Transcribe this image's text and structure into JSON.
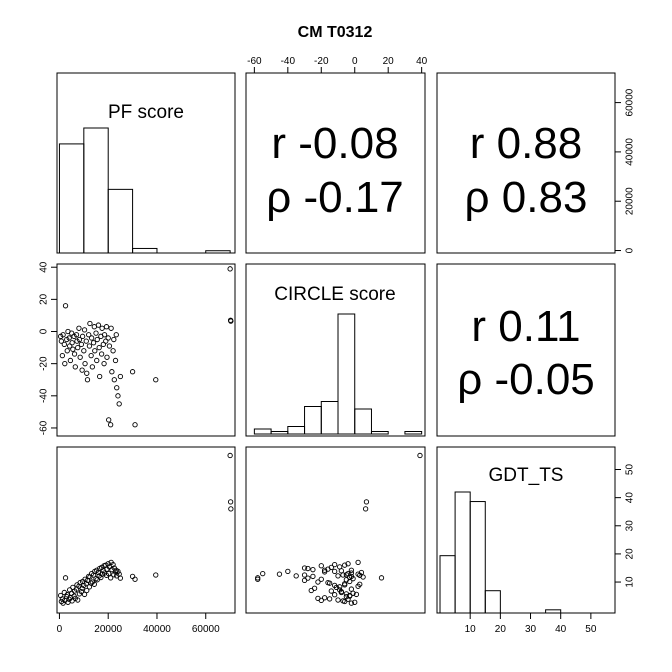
{
  "title": "CM T0312",
  "chart_data": {
    "type": "scatter-matrix",
    "variables": [
      "PF score",
      "CIRCLE score",
      "GDT_TS"
    ],
    "axis_ranges": {
      "pf": [
        -1000,
        72000
      ],
      "circle": [
        -65,
        42
      ],
      "gdt": [
        -1,
        58
      ]
    },
    "ticks": {
      "top": [
        "-60",
        "-40",
        "-20",
        "0",
        "20",
        "40"
      ],
      "bottom": [
        "0",
        "20000",
        "40000",
        "60000"
      ],
      "right_top": [
        "0",
        "20000",
        "40000",
        "60000"
      ],
      "left_mid": [
        "40",
        "20",
        "0",
        "-20",
        "-40",
        "-60"
      ],
      "right_bottom": [
        "10",
        "20",
        "30",
        "40",
        "50"
      ],
      "bottom_right": [
        "10",
        "20",
        "30",
        "40",
        "50"
      ]
    },
    "correlations": [
      {
        "r": "r -0.08",
        "rho": "ρ -0.17"
      },
      {
        "r": "r 0.88",
        "rho": "ρ 0.83"
      },
      {
        "r": "r 0.11",
        "rho": "ρ -0.05"
      }
    ],
    "histograms": {
      "pf": {
        "label": "PF score",
        "bins": [
          0,
          10000,
          20000,
          30000,
          40000,
          50000,
          60000,
          70000
        ],
        "counts": [
          48,
          55,
          28,
          2,
          0,
          0,
          1
        ]
      },
      "circle": {
        "label": "CIRCLE score",
        "bins": [
          -60,
          -50,
          -40,
          -30,
          -20,
          -10,
          0,
          10,
          20,
          30,
          40
        ],
        "counts": [
          2,
          1,
          3,
          11,
          13,
          48,
          10,
          1,
          0,
          1
        ]
      },
      "gdt": {
        "label": "GDT_TS",
        "bins": [
          0,
          5,
          10,
          15,
          20,
          25,
          30,
          35,
          40,
          45,
          50,
          55
        ],
        "counts": [
          18,
          38,
          35,
          7,
          0,
          0,
          0,
          1,
          0,
          0,
          0
        ]
      }
    },
    "points": [
      {
        "pf": 500,
        "circle": -3,
        "gdt": 5.2
      },
      {
        "pf": 800,
        "circle": -6,
        "gdt": 3.1
      },
      {
        "pf": 1200,
        "circle": -15,
        "gdt": 4.0
      },
      {
        "pf": 1500,
        "circle": -2,
        "gdt": 2.5
      },
      {
        "pf": 2000,
        "circle": -8,
        "gdt": 6.3
      },
      {
        "pf": 2200,
        "circle": -20,
        "gdt": 3.5
      },
      {
        "pf": 2500,
        "circle": 16,
        "gdt": 11.5
      },
      {
        "pf": 3000,
        "circle": -5,
        "gdt": 4.8
      },
      {
        "pf": 3200,
        "circle": -12,
        "gdt": 5.5
      },
      {
        "pf": 3500,
        "circle": 0,
        "gdt": 2.8
      },
      {
        "pf": 4000,
        "circle": -4,
        "gdt": 3.9
      },
      {
        "pf": 4200,
        "circle": -9,
        "gdt": 7.2
      },
      {
        "pf": 4500,
        "circle": -18,
        "gdt": 4.4
      },
      {
        "pf": 5000,
        "circle": -1,
        "gdt": 6.0
      },
      {
        "pf": 5200,
        "circle": -7,
        "gdt": 3.3
      },
      {
        "pf": 5500,
        "circle": -11,
        "gdt": 8.1
      },
      {
        "pf": 6000,
        "circle": -3,
        "gdt": 5.0
      },
      {
        "pf": 6200,
        "circle": -14,
        "gdt": 6.8
      },
      {
        "pf": 6500,
        "circle": -22,
        "gdt": 4.2
      },
      {
        "pf": 7000,
        "circle": -2,
        "gdt": 7.5
      },
      {
        "pf": 7200,
        "circle": -6,
        "gdt": 9.0
      },
      {
        "pf": 7500,
        "circle": -10,
        "gdt": 3.6
      },
      {
        "pf": 8000,
        "circle": 2,
        "gdt": 8.5
      },
      {
        "pf": 8200,
        "circle": -5,
        "gdt": 5.8
      },
      {
        "pf": 8500,
        "circle": -16,
        "gdt": 9.8
      },
      {
        "pf": 9000,
        "circle": -8,
        "gdt": 6.6
      },
      {
        "pf": 9300,
        "circle": -24,
        "gdt": 7.8
      },
      {
        "pf": 9500,
        "circle": -3,
        "gdt": 10.2
      },
      {
        "pf": 10000,
        "circle": -12,
        "gdt": 8.8
      },
      {
        "pf": 10300,
        "circle": 1,
        "gdt": 5.6
      },
      {
        "pf": 10500,
        "circle": -20,
        "gdt": 11.0
      },
      {
        "pf": 11000,
        "circle": -6,
        "gdt": 9.4
      },
      {
        "pf": 11200,
        "circle": -26,
        "gdt": 7.0
      },
      {
        "pf": 11500,
        "circle": -30,
        "gdt": 10.6
      },
      {
        "pf": 12000,
        "circle": -2,
        "gdt": 12.0
      },
      {
        "pf": 12300,
        "circle": -9,
        "gdt": 8.3
      },
      {
        "pf": 12500,
        "circle": 5,
        "gdt": 11.8
      },
      {
        "pf": 13000,
        "circle": -15,
        "gdt": 9.6
      },
      {
        "pf": 13200,
        "circle": -4,
        "gdt": 13.0
      },
      {
        "pf": 13500,
        "circle": -22,
        "gdt": 10.0
      },
      {
        "pf": 14000,
        "circle": -7,
        "gdt": 12.5
      },
      {
        "pf": 14300,
        "circle": 3,
        "gdt": 9.2
      },
      {
        "pf": 14500,
        "circle": -12,
        "gdt": 13.8
      },
      {
        "pf": 15000,
        "circle": -1,
        "gdt": 11.2
      },
      {
        "pf": 15300,
        "circle": -18,
        "gdt": 14.2
      },
      {
        "pf": 15500,
        "circle": -5,
        "gdt": 10.8
      },
      {
        "pf": 16000,
        "circle": 4,
        "gdt": 13.4
      },
      {
        "pf": 16300,
        "circle": -10,
        "gdt": 12.2
      },
      {
        "pf": 16500,
        "circle": -28,
        "gdt": 14.8
      },
      {
        "pf": 17000,
        "circle": -3,
        "gdt": 11.6
      },
      {
        "pf": 17300,
        "circle": -14,
        "gdt": 15.2
      },
      {
        "pf": 17500,
        "circle": 2,
        "gdt": 12.8
      },
      {
        "pf": 18000,
        "circle": -8,
        "gdt": 14.0
      },
      {
        "pf": 18300,
        "circle": -20,
        "gdt": 15.8
      },
      {
        "pf": 18500,
        "circle": -2,
        "gdt": 13.2
      },
      {
        "pf": 19000,
        "circle": -6,
        "gdt": 16.0
      },
      {
        "pf": 19300,
        "circle": 3,
        "gdt": 12.4
      },
      {
        "pf": 19500,
        "circle": -16,
        "gdt": 14.6
      },
      {
        "pf": 20000,
        "circle": -4,
        "gdt": 16.5
      },
      {
        "pf": 20200,
        "circle": -55,
        "gdt": 13.0
      },
      {
        "pf": 20500,
        "circle": -9,
        "gdt": 15.4
      },
      {
        "pf": 21000,
        "circle": -58,
        "gdt": 11.5
      },
      {
        "pf": 21200,
        "circle": 2,
        "gdt": 17.0
      },
      {
        "pf": 21500,
        "circle": -25,
        "gdt": 14.4
      },
      {
        "pf": 22000,
        "circle": -12,
        "gdt": 16.2
      },
      {
        "pf": 22300,
        "circle": -5,
        "gdt": 12.6
      },
      {
        "pf": 22500,
        "circle": -30,
        "gdt": 15.0
      },
      {
        "pf": 23000,
        "circle": -18,
        "gdt": 13.6
      },
      {
        "pf": 23300,
        "circle": -2,
        "gdt": 14.2
      },
      {
        "pf": 23500,
        "circle": -35,
        "gdt": 12.2
      },
      {
        "pf": 24000,
        "circle": -40,
        "gdt": 13.8
      },
      {
        "pf": 24500,
        "circle": -45,
        "gdt": 12.8
      },
      {
        "pf": 25000,
        "circle": -28,
        "gdt": 11.4
      },
      {
        "pf": 30000,
        "circle": -25,
        "gdt": 12.0
      },
      {
        "pf": 31000,
        "circle": -58,
        "gdt": 11.0
      },
      {
        "pf": 39500,
        "circle": -30,
        "gdt": 12.5
      },
      {
        "pf": 70000,
        "circle": 39,
        "gdt": 55.0
      },
      {
        "pf": 70200,
        "circle": 7,
        "gdt": 38.5
      },
      {
        "pf": 70300,
        "circle": 6.5,
        "gdt": 36.0
      }
    ]
  }
}
